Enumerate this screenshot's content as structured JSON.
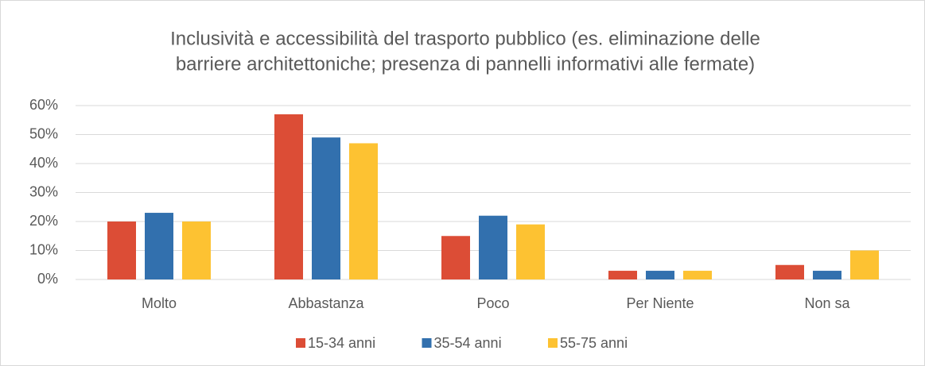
{
  "chart_data": {
    "type": "bar",
    "title": [
      "Inclusività e accessibilità del trasporto pubblico (es. eliminazione delle",
      "barriere architettoniche; presenza di pannelli informativi alle fermate)"
    ],
    "categories": [
      "Molto",
      "Abbastanza",
      "Poco",
      "Per Niente",
      "Non sa"
    ],
    "series": [
      {
        "name": "15-34 anni",
        "color": "#dc4d36",
        "values": [
          20,
          57,
          15,
          3,
          5
        ]
      },
      {
        "name": "35-54 anni",
        "color": "#3270ae",
        "values": [
          23,
          49,
          22,
          3,
          3
        ]
      },
      {
        "name": "55-75 anni",
        "color": "#fdc232",
        "values": [
          20,
          47,
          19,
          3,
          10
        ]
      }
    ],
    "ylim": [
      0,
      60
    ],
    "yticks": [
      {
        "value": 0,
        "label": "0%"
      },
      {
        "value": 10,
        "label": "10%"
      },
      {
        "value": 20,
        "label": "20%"
      },
      {
        "value": 30,
        "label": "30%"
      },
      {
        "value": 40,
        "label": "40%"
      },
      {
        "value": 50,
        "label": "50%"
      },
      {
        "value": 60,
        "label": "60%"
      }
    ],
    "grid": true,
    "legend": "bottom"
  }
}
